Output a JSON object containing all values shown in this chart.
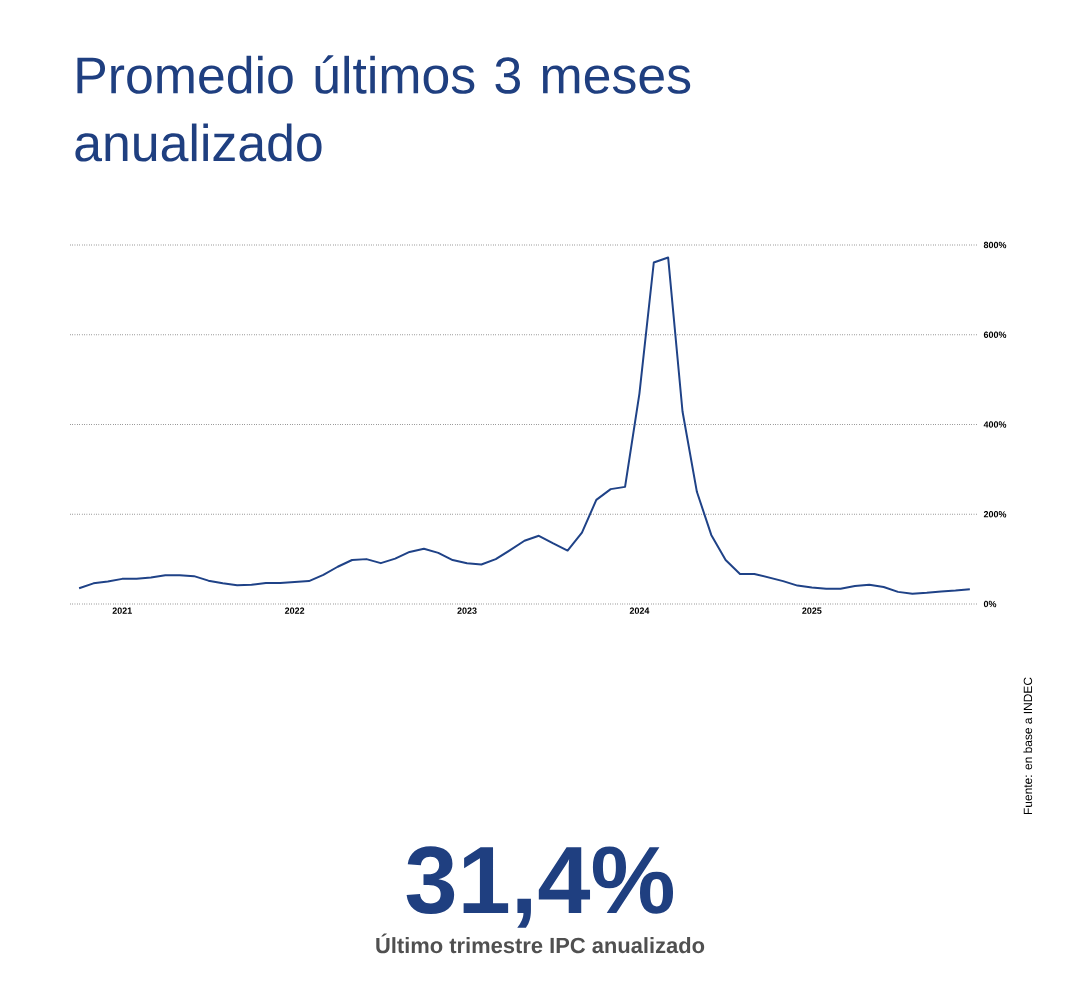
{
  "chart_data": {
    "type": "line",
    "title": "Promedio últimos 3 meses anualizado",
    "x": [
      "2020-10",
      "2020-11",
      "2020-12",
      "2021-01",
      "2021-02",
      "2021-03",
      "2021-04",
      "2021-05",
      "2021-06",
      "2021-07",
      "2021-08",
      "2021-09",
      "2021-10",
      "2021-11",
      "2021-12",
      "2022-01",
      "2022-02",
      "2022-03",
      "2022-04",
      "2022-05",
      "2022-06",
      "2022-07",
      "2022-08",
      "2022-09",
      "2022-10",
      "2022-11",
      "2022-12",
      "2023-01",
      "2023-02",
      "2023-03",
      "2023-04",
      "2023-05",
      "2023-06",
      "2023-07",
      "2023-08",
      "2023-09",
      "2023-10",
      "2023-11",
      "2023-12",
      "2024-01",
      "2024-02",
      "2024-03",
      "2024-04",
      "2024-05",
      "2024-06",
      "2024-07",
      "2024-08",
      "2024-09",
      "2024-10",
      "2024-11",
      "2024-12",
      "2025-01",
      "2025-02",
      "2025-03",
      "2025-04",
      "2025-05",
      "2025-06",
      "2025-07",
      "2025-08",
      "2025-09",
      "2025-10",
      "2025-11",
      "2025-12"
    ],
    "values": [
      35,
      46,
      50,
      56,
      56,
      59,
      64,
      64,
      62,
      52,
      46,
      42,
      43,
      47,
      47,
      49,
      51,
      65,
      83,
      98,
      100,
      91,
      101,
      116,
      123,
      114,
      98,
      91,
      88,
      100,
      120,
      141,
      152,
      135,
      119,
      159,
      232,
      256,
      261,
      469,
      761,
      772,
      429,
      250,
      154,
      98,
      67,
      67,
      59,
      51,
      41,
      37,
      34,
      34,
      40,
      43,
      38,
      27,
      23,
      25,
      28,
      30,
      33
    ],
    "color": "#1f4287",
    "xlim": [
      "2020-09-12",
      "2025-12-18"
    ],
    "xticks": [
      {
        "value": "2021-01",
        "label": "2021"
      },
      {
        "value": "2022-01",
        "label": "2022"
      },
      {
        "value": "2023-01",
        "label": "2023"
      },
      {
        "value": "2024-01",
        "label": "2024"
      },
      {
        "value": "2025-01",
        "label": "2025"
      }
    ],
    "ylim": [
      0,
      800
    ],
    "yticks": [
      {
        "value": 0,
        "label": "0%"
      },
      {
        "value": 200,
        "label": "200%"
      },
      {
        "value": 400,
        "label": "400%"
      },
      {
        "value": 600,
        "label": "600%"
      },
      {
        "value": 800,
        "label": "800%"
      }
    ],
    "grid": "y",
    "annotations": [
      "31,4%",
      "Último trimestre IPC anualizado",
      "Fuente: en base a INDEC"
    ]
  }
}
